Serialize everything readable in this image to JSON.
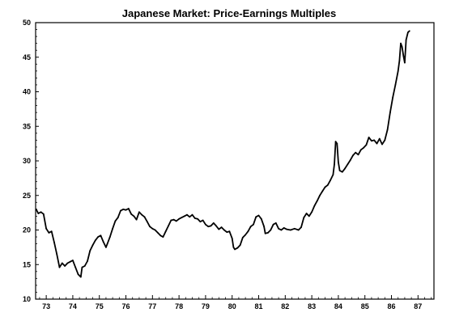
{
  "chart_data": {
    "type": "line",
    "title": "Japanese Market:  Price-Earnings Multiples",
    "xlabel": "",
    "ylabel": "",
    "ylim": [
      10,
      50
    ],
    "xlim": [
      1972.6,
      1987.6
    ],
    "yticks": [
      10,
      15,
      20,
      25,
      30,
      35,
      40,
      45,
      50
    ],
    "xticks": [
      {
        "value": 1973,
        "label": "73"
      },
      {
        "value": 1974,
        "label": "74"
      },
      {
        "value": 1975,
        "label": "75"
      },
      {
        "value": 1976,
        "label": "76"
      },
      {
        "value": 1977,
        "label": "77"
      },
      {
        "value": 1978,
        "label": "78"
      },
      {
        "value": 1979,
        "label": "79"
      },
      {
        "value": 1980,
        "label": "80"
      },
      {
        "value": 1981,
        "label": "81"
      },
      {
        "value": 1982,
        "label": "82"
      },
      {
        "value": 1983,
        "label": "83"
      },
      {
        "value": 1984,
        "label": "84"
      },
      {
        "value": 1985,
        "label": "85"
      },
      {
        "value": 1986,
        "label": "86"
      },
      {
        "value": 1987,
        "label": "87"
      }
    ],
    "grid": false,
    "line_color": "#000000",
    "series": [
      {
        "points": [
          [
            1972.62,
            23.0
          ],
          [
            1972.7,
            22.4
          ],
          [
            1972.8,
            22.6
          ],
          [
            1972.9,
            22.3
          ],
          [
            1973.0,
            20.2
          ],
          [
            1973.1,
            19.6
          ],
          [
            1973.2,
            19.8
          ],
          [
            1973.3,
            18.2
          ],
          [
            1973.4,
            16.5
          ],
          [
            1973.5,
            14.6
          ],
          [
            1973.6,
            15.2
          ],
          [
            1973.7,
            14.8
          ],
          [
            1973.8,
            15.2
          ],
          [
            1973.9,
            15.4
          ],
          [
            1974.0,
            15.6
          ],
          [
            1974.1,
            14.6
          ],
          [
            1974.2,
            13.6
          ],
          [
            1974.3,
            13.2
          ],
          [
            1974.35,
            14.6
          ],
          [
            1974.45,
            14.8
          ],
          [
            1974.55,
            15.5
          ],
          [
            1974.65,
            17.0
          ],
          [
            1974.75,
            17.8
          ],
          [
            1974.85,
            18.5
          ],
          [
            1974.95,
            19.0
          ],
          [
            1975.05,
            19.2
          ],
          [
            1975.15,
            18.3
          ],
          [
            1975.25,
            17.5
          ],
          [
            1975.3,
            18.0
          ],
          [
            1975.4,
            19.0
          ],
          [
            1975.5,
            20.2
          ],
          [
            1975.6,
            21.3
          ],
          [
            1975.7,
            21.8
          ],
          [
            1975.8,
            22.8
          ],
          [
            1975.9,
            23.0
          ],
          [
            1976.0,
            22.9
          ],
          [
            1976.1,
            23.1
          ],
          [
            1976.2,
            22.3
          ],
          [
            1976.3,
            22.0
          ],
          [
            1976.4,
            21.5
          ],
          [
            1976.5,
            22.6
          ],
          [
            1976.6,
            22.2
          ],
          [
            1976.7,
            21.9
          ],
          [
            1976.8,
            21.2
          ],
          [
            1976.9,
            20.5
          ],
          [
            1977.0,
            20.2
          ],
          [
            1977.1,
            20.0
          ],
          [
            1977.2,
            19.6
          ],
          [
            1977.3,
            19.2
          ],
          [
            1977.4,
            19.0
          ],
          [
            1977.5,
            19.8
          ],
          [
            1977.6,
            20.6
          ],
          [
            1977.7,
            21.4
          ],
          [
            1977.8,
            21.5
          ],
          [
            1977.9,
            21.3
          ],
          [
            1978.0,
            21.6
          ],
          [
            1978.1,
            21.8
          ],
          [
            1978.2,
            22.0
          ],
          [
            1978.3,
            22.2
          ],
          [
            1978.4,
            21.9
          ],
          [
            1978.5,
            22.2
          ],
          [
            1978.6,
            21.7
          ],
          [
            1978.7,
            21.6
          ],
          [
            1978.8,
            21.2
          ],
          [
            1978.9,
            21.4
          ],
          [
            1979.0,
            20.8
          ],
          [
            1979.1,
            20.5
          ],
          [
            1979.2,
            20.6
          ],
          [
            1979.3,
            21.0
          ],
          [
            1979.4,
            20.6
          ],
          [
            1979.5,
            20.1
          ],
          [
            1979.6,
            20.4
          ],
          [
            1979.7,
            20.0
          ],
          [
            1979.8,
            19.7
          ],
          [
            1979.9,
            19.8
          ],
          [
            1980.0,
            18.8
          ],
          [
            1980.05,
            17.5
          ],
          [
            1980.1,
            17.2
          ],
          [
            1980.2,
            17.4
          ],
          [
            1980.3,
            17.8
          ],
          [
            1980.4,
            18.9
          ],
          [
            1980.5,
            19.3
          ],
          [
            1980.6,
            19.8
          ],
          [
            1980.7,
            20.5
          ],
          [
            1980.8,
            20.8
          ],
          [
            1980.9,
            21.9
          ],
          [
            1981.0,
            22.1
          ],
          [
            1981.1,
            21.6
          ],
          [
            1981.2,
            20.5
          ],
          [
            1981.25,
            19.5
          ],
          [
            1981.35,
            19.6
          ],
          [
            1981.45,
            20.0
          ],
          [
            1981.55,
            20.8
          ],
          [
            1981.65,
            21.0
          ],
          [
            1981.75,
            20.2
          ],
          [
            1981.85,
            20.0
          ],
          [
            1981.95,
            20.3
          ],
          [
            1982.05,
            20.1
          ],
          [
            1982.2,
            20.0
          ],
          [
            1982.35,
            20.2
          ],
          [
            1982.5,
            20.0
          ],
          [
            1982.6,
            20.4
          ],
          [
            1982.7,
            21.8
          ],
          [
            1982.8,
            22.4
          ],
          [
            1982.9,
            22.0
          ],
          [
            1983.0,
            22.6
          ],
          [
            1983.1,
            23.5
          ],
          [
            1983.2,
            24.2
          ],
          [
            1983.3,
            25.0
          ],
          [
            1983.4,
            25.6
          ],
          [
            1983.5,
            26.2
          ],
          [
            1983.6,
            26.5
          ],
          [
            1983.7,
            27.2
          ],
          [
            1983.8,
            28.0
          ],
          [
            1983.85,
            29.5
          ],
          [
            1983.9,
            32.8
          ],
          [
            1983.95,
            32.5
          ],
          [
            1984.0,
            29.8
          ],
          [
            1984.05,
            28.6
          ],
          [
            1984.15,
            28.4
          ],
          [
            1984.25,
            28.9
          ],
          [
            1984.35,
            29.5
          ],
          [
            1984.45,
            30.1
          ],
          [
            1984.55,
            30.8
          ],
          [
            1984.65,
            31.2
          ],
          [
            1984.75,
            30.9
          ],
          [
            1984.85,
            31.6
          ],
          [
            1984.95,
            31.9
          ],
          [
            1985.05,
            32.3
          ],
          [
            1985.15,
            33.4
          ],
          [
            1985.25,
            32.9
          ],
          [
            1985.35,
            33.0
          ],
          [
            1985.45,
            32.5
          ],
          [
            1985.55,
            33.2
          ],
          [
            1985.65,
            32.4
          ],
          [
            1985.75,
            33.0
          ],
          [
            1985.85,
            34.5
          ],
          [
            1985.95,
            37.0
          ],
          [
            1986.05,
            39.2
          ],
          [
            1986.15,
            41.0
          ],
          [
            1986.25,
            43.0
          ],
          [
            1986.3,
            44.5
          ],
          [
            1986.35,
            47.0
          ],
          [
            1986.4,
            46.5
          ],
          [
            1986.45,
            45.2
          ],
          [
            1986.5,
            44.2
          ],
          [
            1986.55,
            47.5
          ],
          [
            1986.62,
            48.6
          ],
          [
            1986.68,
            48.8
          ]
        ]
      }
    ]
  }
}
